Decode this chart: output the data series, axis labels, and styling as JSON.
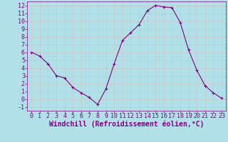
{
  "x": [
    0,
    1,
    2,
    3,
    4,
    5,
    6,
    7,
    8,
    9,
    10,
    11,
    12,
    13,
    14,
    15,
    16,
    17,
    18,
    19,
    20,
    21,
    22,
    23
  ],
  "y": [
    6.0,
    5.5,
    4.5,
    3.0,
    2.7,
    1.5,
    0.8,
    0.2,
    -0.7,
    1.3,
    4.5,
    7.5,
    8.5,
    9.5,
    11.3,
    12.0,
    11.8,
    11.7,
    9.8,
    6.3,
    3.7,
    1.7,
    0.8,
    0.1
  ],
  "line_color": "#800080",
  "marker": "+",
  "marker_color": "#800080",
  "bg_color": "#b2e0e8",
  "grid_color": "#c8c8c8",
  "xlabel": "Windchill (Refroidissement éolien,°C)",
  "xlabel_color": "#800080",
  "tick_color": "#800080",
  "xlim": [
    -0.5,
    23.5
  ],
  "ylim": [
    -1.5,
    12.5
  ],
  "yticks": [
    -1,
    0,
    1,
    2,
    3,
    4,
    5,
    6,
    7,
    8,
    9,
    10,
    11,
    12
  ],
  "xticks": [
    0,
    1,
    2,
    3,
    4,
    5,
    6,
    7,
    8,
    9,
    10,
    11,
    12,
    13,
    14,
    15,
    16,
    17,
    18,
    19,
    20,
    21,
    22,
    23
  ],
  "font_size": 6.0,
  "label_font_size": 7.0
}
